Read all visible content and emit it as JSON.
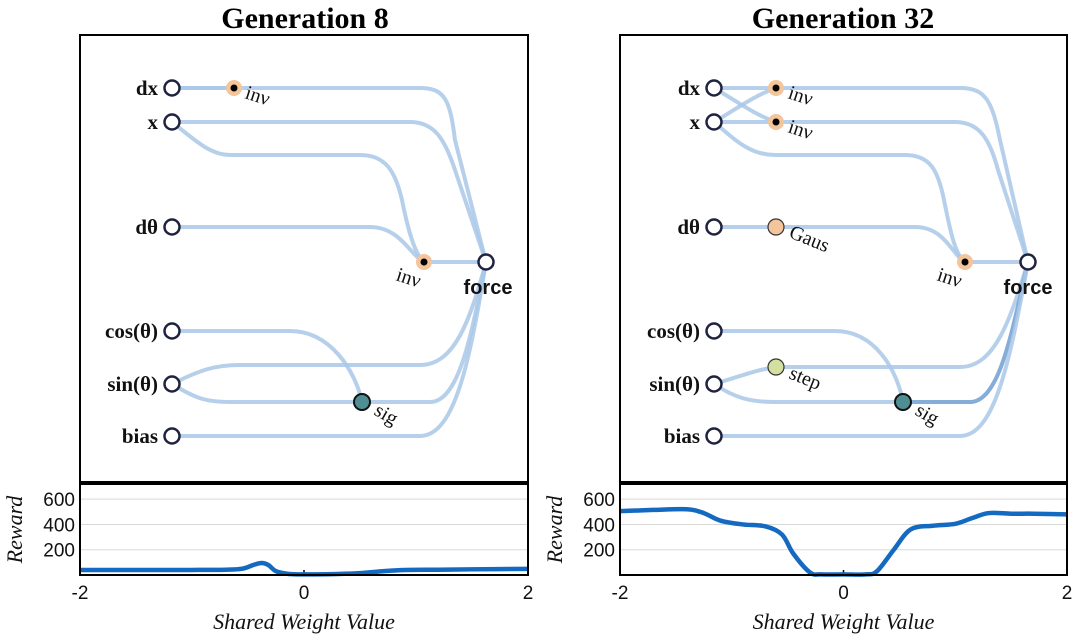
{
  "panels": [
    {
      "title": "Generation 8",
      "inputs": [
        "dx",
        "x",
        "dθ",
        "cos(θ)",
        "sin(θ)",
        "bias"
      ],
      "hidden": [
        {
          "label": "inν",
          "color": "#f4c49a"
        },
        {
          "label": "inν",
          "color": "#f4c49a"
        },
        {
          "label": "sig",
          "color": "#4f8f93"
        }
      ],
      "output": "force"
    },
    {
      "title": "Generation 32",
      "inputs": [
        "dx",
        "x",
        "dθ",
        "cos(θ)",
        "sin(θ)",
        "bias"
      ],
      "hidden": [
        {
          "label": "inν",
          "color": "#f4c49a"
        },
        {
          "label": "inν",
          "color": "#f4c49a"
        },
        {
          "label": "Gaus",
          "color": "#f4c49a"
        },
        {
          "label": "inν",
          "color": "#f4c49a"
        },
        {
          "label": "step",
          "color": "#d3e0a0"
        },
        {
          "label": "sig",
          "color": "#4f8f93"
        }
      ],
      "output": "force"
    }
  ],
  "chart_data": [
    {
      "type": "line",
      "xlabel": "Shared Weight Value",
      "ylabel": "Reward",
      "xlim": [
        -2,
        2
      ],
      "ylim": [
        0,
        720
      ],
      "xticks": [
        "-2",
        "0",
        "2"
      ],
      "yticks": [
        "200",
        "400",
        "600"
      ],
      "x": [
        -2,
        -1.5,
        -1.0,
        -0.7,
        -0.55,
        -0.45,
        -0.38,
        -0.32,
        -0.25,
        -0.15,
        -0.05,
        0.1,
        0.3,
        0.5,
        0.7,
        0.9,
        1.2,
        1.5,
        2.0
      ],
      "y": [
        40,
        40,
        40,
        42,
        50,
        80,
        95,
        80,
        30,
        10,
        5,
        5,
        8,
        15,
        30,
        40,
        42,
        45,
        48
      ]
    },
    {
      "type": "line",
      "xlabel": "Shared Weight Value",
      "ylabel": "Reward",
      "xlim": [
        -2,
        2
      ],
      "ylim": [
        0,
        720
      ],
      "xticks": [
        "-2",
        "0",
        "2"
      ],
      "yticks": [
        "200",
        "400",
        "600"
      ],
      "x": [
        -2,
        -1.7,
        -1.4,
        -1.25,
        -1.1,
        -0.9,
        -0.7,
        -0.55,
        -0.45,
        -0.3,
        -0.2,
        0,
        0.2,
        0.3,
        0.45,
        0.6,
        0.8,
        1.0,
        1.15,
        1.3,
        1.5,
        1.7,
        2.0
      ],
      "y": [
        505,
        515,
        520,
        490,
        430,
        400,
        385,
        320,
        170,
        20,
        5,
        5,
        5,
        30,
        200,
        360,
        390,
        405,
        450,
        490,
        485,
        485,
        480
      ]
    }
  ]
}
